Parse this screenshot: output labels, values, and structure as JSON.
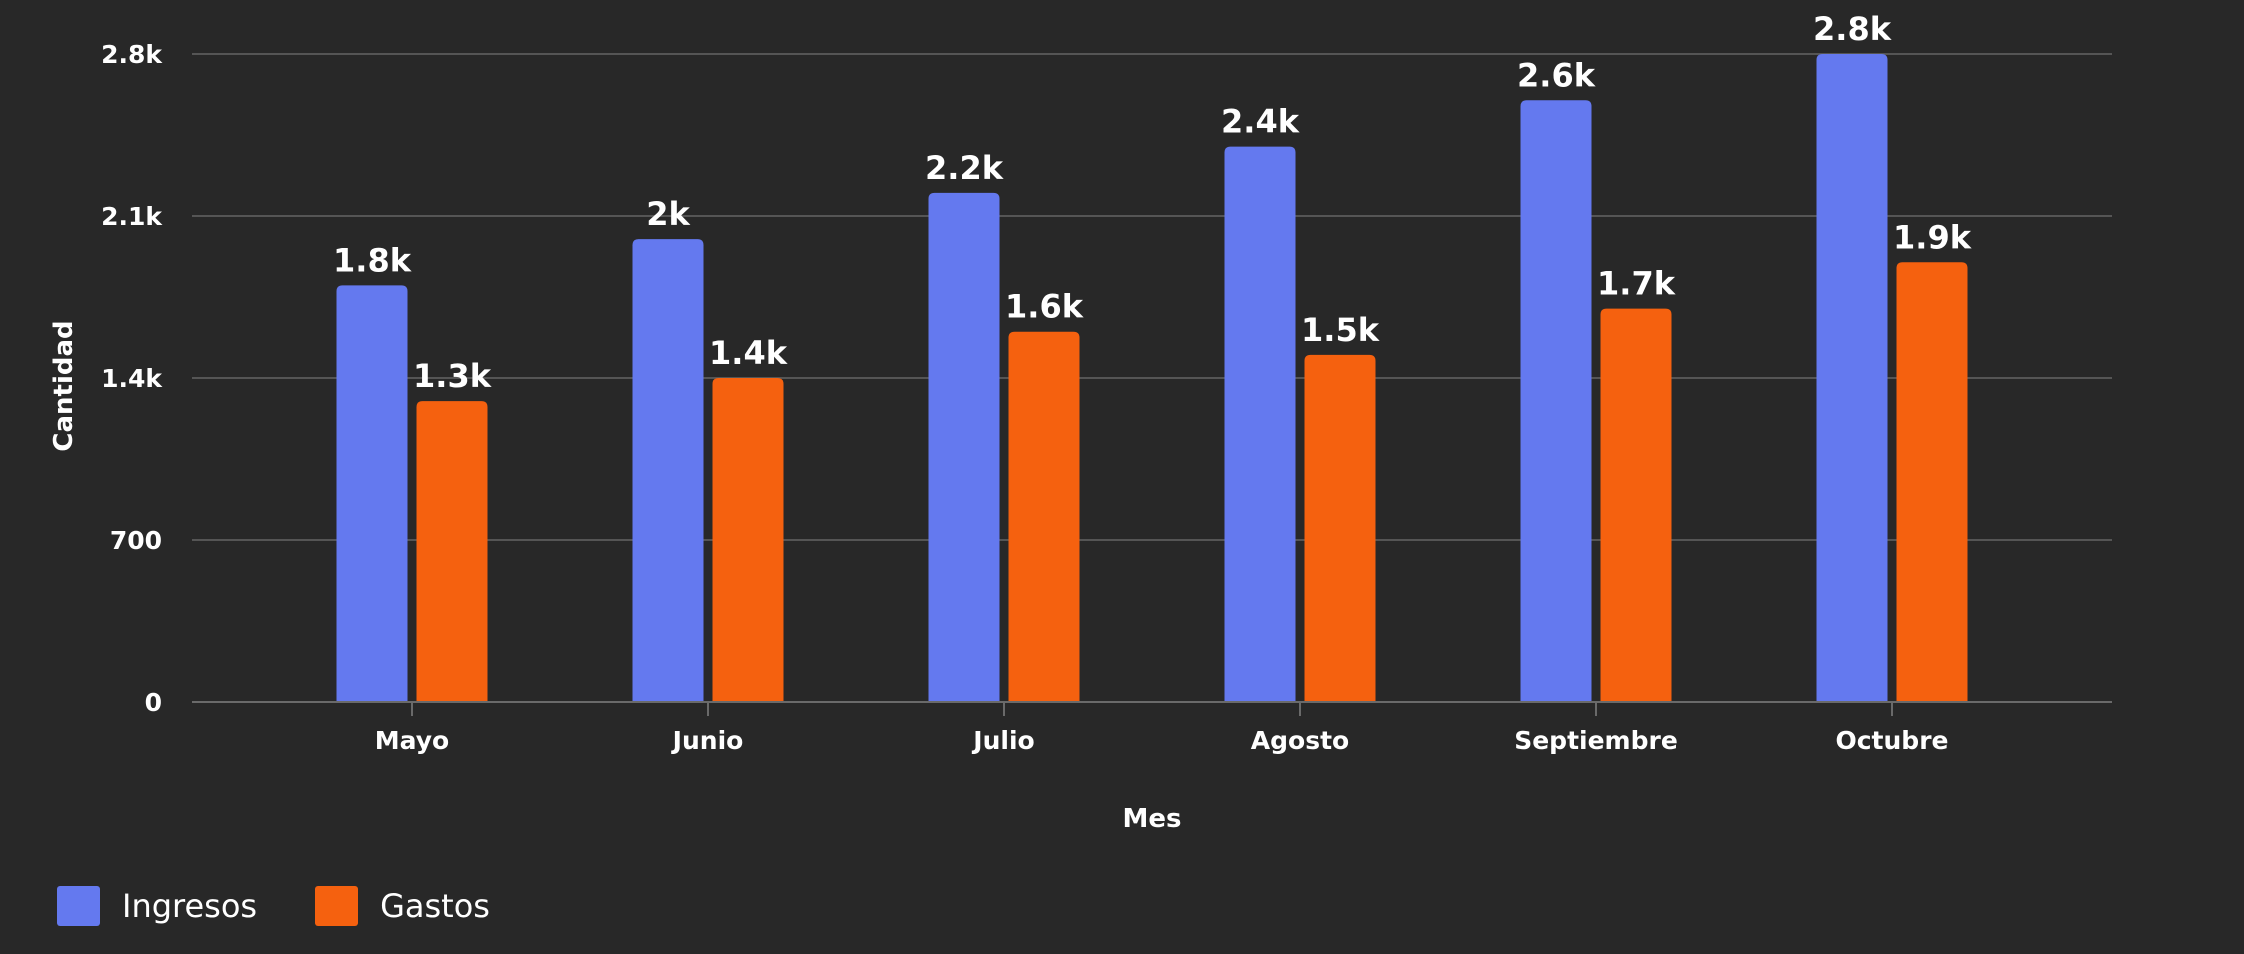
{
  "chart_data": {
    "type": "bar",
    "categories": [
      "Mayo",
      "Junio",
      "Julio",
      "Agosto",
      "Septiembre",
      "Octubre"
    ],
    "series": [
      {
        "name": "Ingresos",
        "color": "#6479ef",
        "values": [
          1800,
          2000,
          2200,
          2400,
          2600,
          2800
        ],
        "labels": [
          "1.8k",
          "2k",
          "2.2k",
          "2.4k",
          "2.6k",
          "2.8k"
        ]
      },
      {
        "name": "Gastos",
        "color": "#f5610f",
        "values": [
          1300,
          1400,
          1600,
          1500,
          1700,
          1900
        ],
        "labels": [
          "1.3k",
          "1.4k",
          "1.6k",
          "1.5k",
          "1.7k",
          "1.9k"
        ]
      }
    ],
    "xlabel": "Mes",
    "ylabel": "Cantidad",
    "ylim": [
      0,
      2800
    ],
    "yticks": [
      0,
      700,
      1400,
      2100,
      2800
    ],
    "ytick_labels": [
      "0",
      "700",
      "1.4k",
      "2.1k",
      "2.8k"
    ],
    "grid": true,
    "legend_position": "bottom-left"
  },
  "legend": {
    "items": [
      {
        "label": "Ingresos",
        "color": "#6479ef"
      },
      {
        "label": "Gastos",
        "color": "#f5610f"
      }
    ]
  }
}
